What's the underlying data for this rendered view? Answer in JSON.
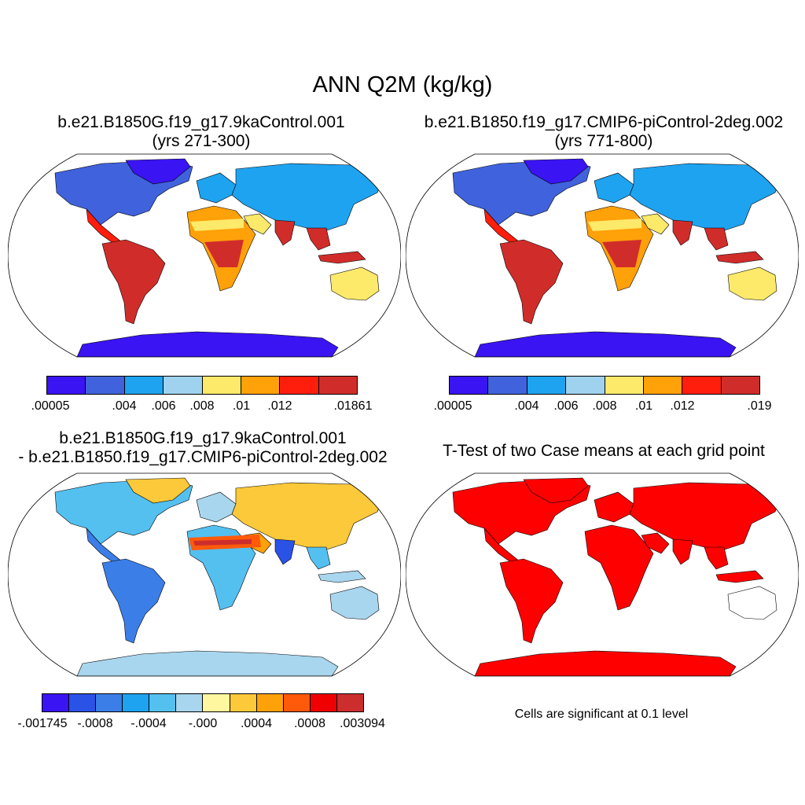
{
  "title": "ANN Q2M (kg/kg)",
  "panels": [
    {
      "id": "case1",
      "title_lines": [
        "b.e21.B1850G.f19_g17.9kaControl.001",
        "(yrs 271-300)"
      ],
      "colors": [
        "#3a14f2",
        "#4062dc",
        "#1ea3f0",
        "#9fd2ee",
        "#fde96a",
        "#ffa109",
        "#ff1e0c",
        "#d02d2a"
      ],
      "labels": [
        ".00005",
        ".004",
        ".006",
        ".008",
        ".01",
        ".012",
        ".01861"
      ]
    },
    {
      "id": "case2",
      "title_lines": [
        "b.e21.B1850.f19_g17.CMIP6-piControl-2deg.002",
        "(yrs 771-800)"
      ],
      "colors": [
        "#3a14f2",
        "#4062dc",
        "#1ea3f0",
        "#9fd2ee",
        "#fde96a",
        "#ffa109",
        "#ff1e0c",
        "#d02d2a"
      ],
      "labels": [
        ".00005",
        ".004",
        ".006",
        ".008",
        ".01",
        ".012",
        ".019"
      ]
    },
    {
      "id": "diff",
      "title_lines": [
        "b.e21.B1850G.f19_g17.9kaControl.001",
        "- b.e21.B1850.f19_g17.CMIP6-piControl-2deg.002"
      ],
      "colors": [
        "#3a14f2",
        "#2a52e6",
        "#3b7ee8",
        "#1ea3f0",
        "#54c0f0",
        "#a8d6ee",
        "#fff7a0",
        "#fcc93a",
        "#ffa109",
        "#ff5a0a",
        "#f00000",
        "#cc2d2d"
      ],
      "labels": [
        "-.001745",
        "-.0008",
        "-.0004",
        "-.000",
        ".0004",
        ".0008",
        ".003094"
      ]
    },
    {
      "id": "ttest",
      "title_lines": [
        "T-Test of two Case means at each grid point"
      ],
      "note": "Cells are significant at 0.1 level",
      "sig_color": "#ff0000"
    }
  ]
}
